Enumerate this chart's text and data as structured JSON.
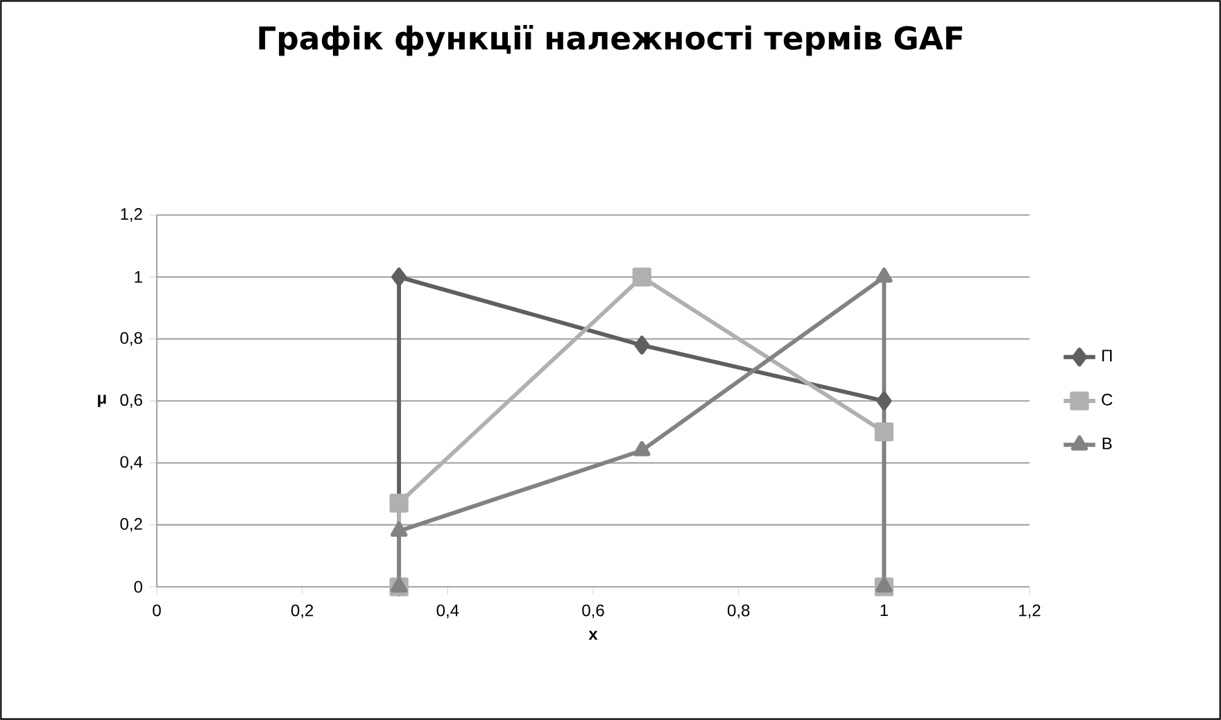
{
  "chart_data": {
    "type": "line",
    "title": "Графік функції належності термів GAF",
    "xlabel": "x",
    "ylabel": "μ",
    "series": [
      {
        "name": "П",
        "color": "#5f5f5f",
        "marker": "diamond",
        "x": [
          0.333,
          0.333,
          0.667,
          1
        ],
        "values": [
          0,
          1,
          0.78,
          0.6
        ]
      },
      {
        "name": "С",
        "color": "#b0b0b0",
        "marker": "square",
        "x": [
          0.333,
          0.333,
          0.667,
          1,
          1
        ],
        "values": [
          0,
          0.27,
          1,
          0.5,
          0
        ]
      },
      {
        "name": "В",
        "color": "#828282",
        "marker": "triangle",
        "x": [
          0.333,
          0.333,
          0.667,
          1,
          1
        ],
        "values": [
          0,
          0.18,
          0.44,
          1,
          0
        ]
      }
    ],
    "xlim": [
      0,
      1.2
    ],
    "ylim": [
      0,
      1.2
    ],
    "xticks": [
      0,
      {
        "value": 0.2,
        "label": "0,2"
      },
      {
        "value": 0.4,
        "label": "0,4"
      },
      {
        "value": 0.6,
        "label": "0,6"
      },
      {
        "value": 0.8,
        "label": "0,8"
      },
      1,
      {
        "value": 1.2,
        "label": "1,2"
      }
    ],
    "yticks": [
      0,
      {
        "value": 0.2,
        "label": "0,2"
      },
      {
        "value": 0.4,
        "label": "0,4"
      },
      {
        "value": 0.6,
        "label": "0,6"
      },
      {
        "value": 0.8,
        "label": "0,8"
      },
      1,
      {
        "value": 1.2,
        "label": "1,2"
      }
    ],
    "grid": "y",
    "legend": "right"
  }
}
